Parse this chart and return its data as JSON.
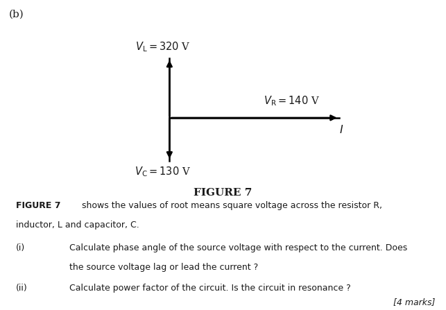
{
  "fig_width": 6.43,
  "fig_height": 4.47,
  "dpi": 100,
  "bg_color": "#ffffff",
  "label_b": "(b)",
  "VL_label": "$\\mathit{V}_\\mathrm{L} = 320$ V",
  "VR_label": "$\\mathit{V}_\\mathrm{R} = 140$ V",
  "VC_label": "$\\mathit{V}_\\mathrm{C} = 130$ V",
  "I_label": "$I$",
  "figure_title": "FIGURE 7",
  "body_bold": "FIGURE 7",
  "body_rest": " shows the values of root means square voltage across the resistor R,",
  "body_line2": "inductor, L and capacitor, C.",
  "item_i_num": "(i)",
  "item_i_text1": "Calculate phase angle of the source voltage with respect to the current. Does",
  "item_i_text2": "the source voltage lag or lead the current ?",
  "item_ii_num": "(ii)",
  "item_ii_text": "Calculate power factor of the circuit. Is the circuit in resonance ?",
  "marks_text": "[4 marks]",
  "arrow_color": "#000000",
  "text_color": "#1a1a1a",
  "font_size_body": 9.0,
  "font_size_diagram": 10.5
}
